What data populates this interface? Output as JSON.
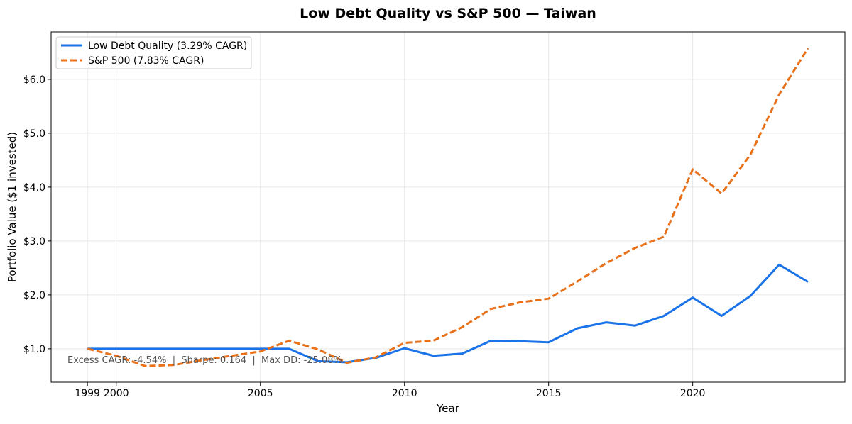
{
  "chart_data": {
    "type": "line",
    "title": "Low Debt Quality vs S&P 500 — Taiwan",
    "xlabel": "Year",
    "ylabel": "Portfolio Value ($1 invested)",
    "xlim": [
      1997.74,
      2025.28
    ],
    "ylim": [
      0.38,
      6.88
    ],
    "grid": true,
    "legend_position": "top-left",
    "x_ticks": [
      1999,
      2000,
      2005,
      2010,
      2015,
      2020
    ],
    "x_tick_labels": [
      "1999",
      "2000",
      "2005",
      "2010",
      "2015",
      "2020"
    ],
    "y_ticks": [
      1,
      2,
      3,
      4,
      5,
      6
    ],
    "y_tick_labels": [
      "$1.0",
      "$2.0",
      "$3.0",
      "$4.0",
      "$5.0",
      "$6.0"
    ],
    "x": [
      1999,
      2000,
      2001,
      2002,
      2003,
      2004,
      2005,
      2006,
      2007,
      2008,
      2009,
      2010,
      2011,
      2012,
      2013,
      2014,
      2015,
      2016,
      2017,
      2018,
      2019,
      2020,
      2021,
      2022,
      2023,
      2024
    ],
    "series": [
      {
        "name": "Low Debt Quality (3.29% CAGR)",
        "color": "#1a73e8",
        "style": "solid",
        "values": [
          1.0,
          1.0,
          1.0,
          1.0,
          1.0,
          1.0,
          1.0,
          1.0,
          0.77,
          0.75,
          0.83,
          1.01,
          0.87,
          0.91,
          1.15,
          1.14,
          1.12,
          1.38,
          1.49,
          1.43,
          1.61,
          1.95,
          1.61,
          1.98,
          2.56,
          2.24
        ]
      },
      {
        "name": "S&P 500 (7.83% CAGR)",
        "color": "#e8711a",
        "style": "dashed",
        "values": [
          1.0,
          0.87,
          0.68,
          0.7,
          0.79,
          0.87,
          0.95,
          1.15,
          0.99,
          0.74,
          0.84,
          1.11,
          1.15,
          1.4,
          1.74,
          1.86,
          1.93,
          2.25,
          2.59,
          2.87,
          3.08,
          4.33,
          3.88,
          4.6,
          5.72,
          6.58
        ]
      }
    ],
    "annotation": "Excess CAGR: -4.54%  |  Sharpe: 0.164  |  Max DD: -25.08%"
  }
}
